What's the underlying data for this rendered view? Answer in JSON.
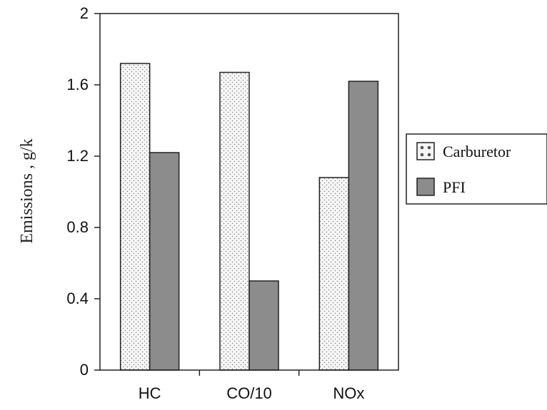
{
  "chart_data": {
    "type": "bar",
    "categories": [
      "HC",
      "CO/10",
      "NOx"
    ],
    "series": [
      {
        "name": "Carburetor",
        "values": [
          1.72,
          1.67,
          1.08
        ]
      },
      {
        "name": "PFI",
        "values": [
          1.22,
          0.5,
          1.62
        ]
      }
    ],
    "title": "",
    "xlabel": "",
    "ylabel": "Emissions , g/k",
    "ylim": [
      0,
      2
    ],
    "yticks": [
      "0",
      "0.4",
      "0.8",
      "1.2",
      "1.6",
      "2"
    ],
    "grid": false,
    "legend_position": "right",
    "colors": {
      "Carburetor": "#f4f4f4",
      "PFI": "#8c8c8c",
      "outline": "#222222"
    }
  }
}
